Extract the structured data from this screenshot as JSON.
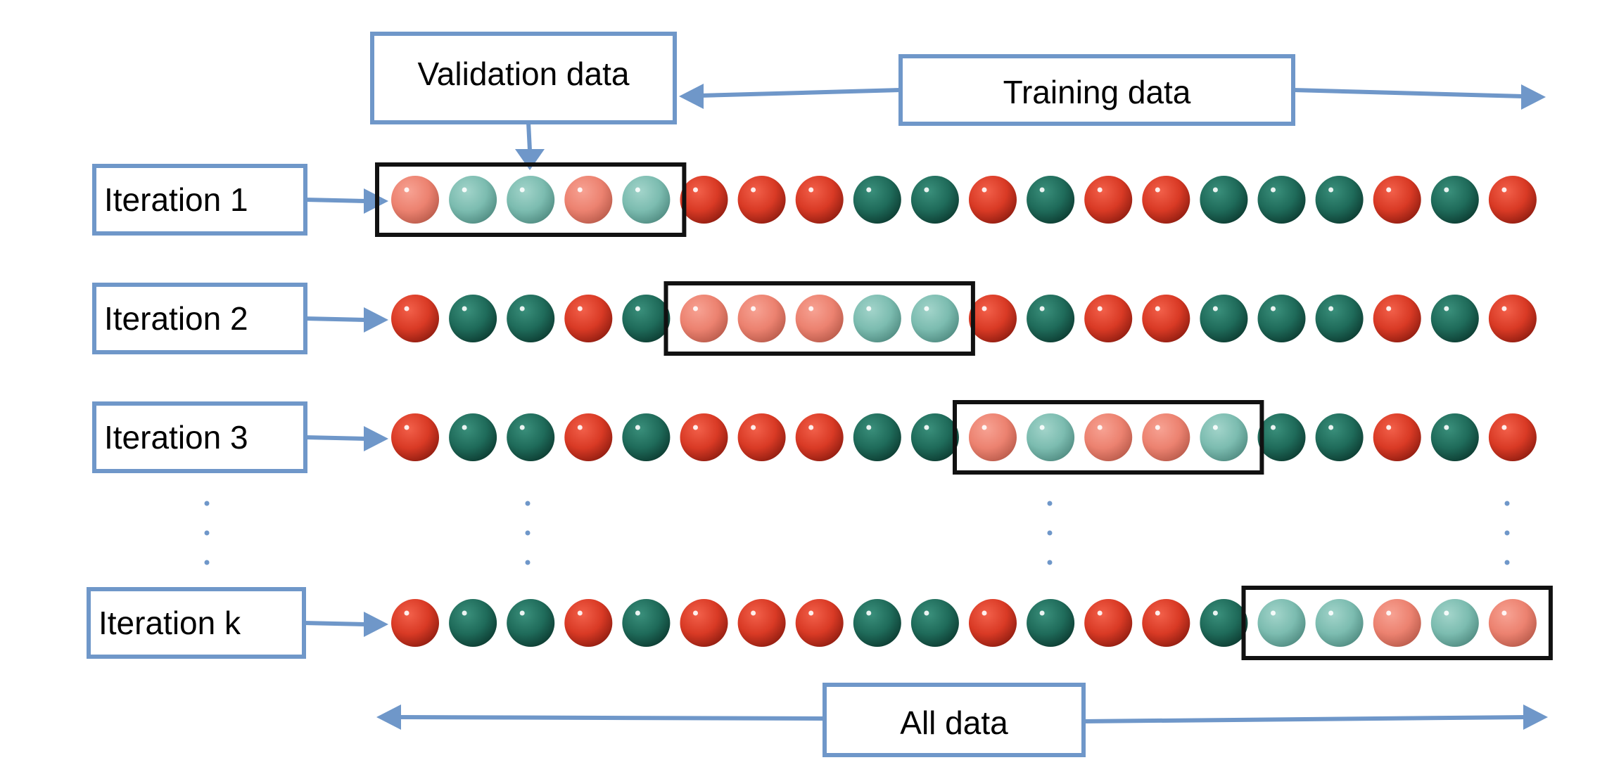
{
  "labels": {
    "validation": "Validation data",
    "training": "Training data",
    "all": "All data"
  },
  "iterations": [
    {
      "label": "Iteration 1",
      "balls": [
        "r",
        "g",
        "g",
        "r",
        "g",
        "r",
        "r",
        "r",
        "g",
        "g",
        "r",
        "g",
        "r",
        "r",
        "g",
        "g",
        "g",
        "r",
        "g",
        "r"
      ],
      "validation_start": 0
    },
    {
      "label": "Iteration 2",
      "balls": [
        "r",
        "g",
        "g",
        "r",
        "g",
        "r",
        "r",
        "r",
        "g",
        "g",
        "r",
        "g",
        "r",
        "r",
        "g",
        "g",
        "g",
        "r",
        "g",
        "r"
      ],
      "validation_start": 5
    },
    {
      "label": "Iteration 3",
      "balls": [
        "r",
        "g",
        "g",
        "r",
        "g",
        "r",
        "r",
        "r",
        "g",
        "g",
        "r",
        "g",
        "r",
        "r",
        "g",
        "g",
        "g",
        "r",
        "g",
        "r"
      ],
      "validation_start": 10
    },
    {
      "label": "Iteration k",
      "balls": [
        "r",
        "g",
        "g",
        "r",
        "g",
        "r",
        "r",
        "r",
        "g",
        "g",
        "r",
        "g",
        "r",
        "r",
        "g",
        "g",
        "g",
        "r",
        "g",
        "r"
      ],
      "validation_start": 15
    }
  ],
  "validation_size": 5,
  "colors": {
    "accent_blue": "#6f97c9",
    "red_class": "#d93a25",
    "green_class": "#1f6b5a",
    "red_validation": "#ec8270",
    "green_validation": "#7cbcb0"
  }
}
